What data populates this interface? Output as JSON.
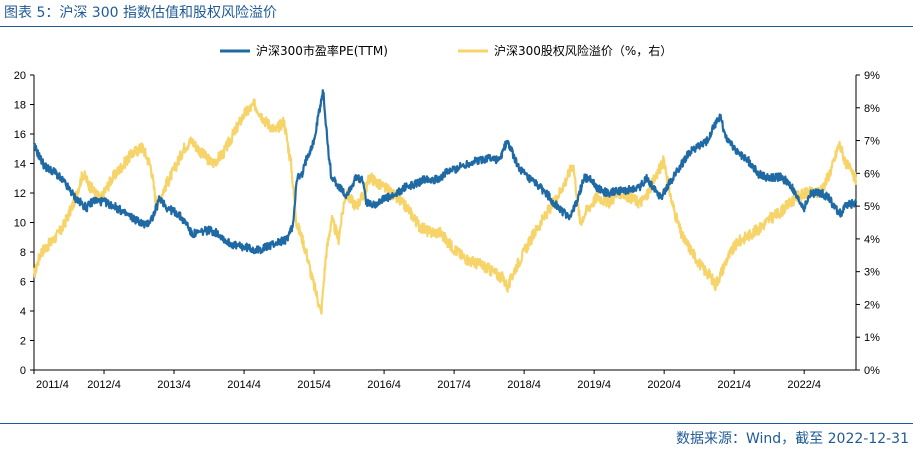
{
  "header": {
    "title": "图表 5：沪深 300 指数估值和股权风险溢价"
  },
  "footer": {
    "source": "数据来源：Wind，截至 2022-12-31"
  },
  "colors": {
    "accent": "#1f5a96",
    "pe_series": "#1f6aa5",
    "erp_series": "#f7d469"
  },
  "chart_data": {
    "type": "line",
    "legend_position": "top",
    "grid": false,
    "x_tick_labels": [
      "2011/4",
      "2012/4",
      "2013/4",
      "2014/4",
      "2015/4",
      "2016/4",
      "2017/4",
      "2018/4",
      "2019/4",
      "2020/4",
      "2021/4",
      "2022/4"
    ],
    "xlim": [
      2011.25,
      2022.99
    ],
    "y_left": {
      "label": "",
      "lim": [
        0,
        20
      ],
      "ticks": [
        "0",
        "2",
        "4",
        "6",
        "8",
        "10",
        "12",
        "14",
        "16",
        "18",
        "20"
      ]
    },
    "y_right": {
      "label": "",
      "lim": [
        0,
        9
      ],
      "ticks": [
        "0%",
        "1%",
        "2%",
        "3%",
        "4%",
        "5%",
        "6%",
        "7%",
        "8%",
        "9%"
      ]
    },
    "series": [
      {
        "name": "沪深300市盈率PE(TTM)",
        "axis": "left",
        "color": "#1f6aa5",
        "points": [
          [
            2011.25,
            15.2
          ],
          [
            2011.4,
            13.8
          ],
          [
            2011.55,
            13.4
          ],
          [
            2011.7,
            12.6
          ],
          [
            2011.85,
            11.6
          ],
          [
            2012.0,
            11.0
          ],
          [
            2012.1,
            11.5
          ],
          [
            2012.25,
            11.4
          ],
          [
            2012.4,
            11.1
          ],
          [
            2012.55,
            10.6
          ],
          [
            2012.7,
            10.2
          ],
          [
            2012.85,
            9.8
          ],
          [
            2012.95,
            10.4
          ],
          [
            2013.05,
            11.7
          ],
          [
            2013.15,
            11.0
          ],
          [
            2013.3,
            10.6
          ],
          [
            2013.45,
            9.8
          ],
          [
            2013.5,
            9.2
          ],
          [
            2013.6,
            9.3
          ],
          [
            2013.75,
            9.5
          ],
          [
            2013.9,
            9.2
          ],
          [
            2014.0,
            8.7
          ],
          [
            2014.15,
            8.4
          ],
          [
            2014.3,
            8.3
          ],
          [
            2014.45,
            8.1
          ],
          [
            2014.6,
            8.4
          ],
          [
            2014.75,
            8.7
          ],
          [
            2014.85,
            8.8
          ],
          [
            2014.95,
            9.8
          ],
          [
            2015.0,
            13.0
          ],
          [
            2015.08,
            13.2
          ],
          [
            2015.15,
            14.5
          ],
          [
            2015.25,
            15.5
          ],
          [
            2015.32,
            17.5
          ],
          [
            2015.38,
            18.9
          ],
          [
            2015.45,
            15.0
          ],
          [
            2015.5,
            13.0
          ],
          [
            2015.55,
            12.8
          ],
          [
            2015.7,
            11.8
          ],
          [
            2015.85,
            13.0
          ],
          [
            2015.95,
            12.8
          ],
          [
            2016.0,
            11.3
          ],
          [
            2016.1,
            11.2
          ],
          [
            2016.25,
            11.6
          ],
          [
            2016.4,
            11.8
          ],
          [
            2016.55,
            12.4
          ],
          [
            2016.7,
            12.6
          ],
          [
            2016.85,
            13.0
          ],
          [
            2017.0,
            12.9
          ],
          [
            2017.15,
            13.4
          ],
          [
            2017.3,
            13.7
          ],
          [
            2017.45,
            14.0
          ],
          [
            2017.6,
            14.2
          ],
          [
            2017.75,
            14.4
          ],
          [
            2017.9,
            14.2
          ],
          [
            2018.0,
            15.5
          ],
          [
            2018.08,
            14.8
          ],
          [
            2018.15,
            13.9
          ],
          [
            2018.3,
            13.0
          ],
          [
            2018.45,
            12.5
          ],
          [
            2018.6,
            11.8
          ],
          [
            2018.75,
            10.9
          ],
          [
            2018.9,
            10.4
          ],
          [
            2019.0,
            11.3
          ],
          [
            2019.1,
            13.0
          ],
          [
            2019.2,
            13.0
          ],
          [
            2019.3,
            12.3
          ],
          [
            2019.45,
            12.0
          ],
          [
            2019.6,
            12.1
          ],
          [
            2019.75,
            12.2
          ],
          [
            2019.9,
            12.4
          ],
          [
            2020.0,
            13.0
          ],
          [
            2020.1,
            12.4
          ],
          [
            2020.2,
            11.7
          ],
          [
            2020.3,
            12.5
          ],
          [
            2020.45,
            13.6
          ],
          [
            2020.6,
            14.7
          ],
          [
            2020.75,
            15.2
          ],
          [
            2020.85,
            15.4
          ],
          [
            2020.95,
            16.4
          ],
          [
            2021.05,
            17.2
          ],
          [
            2021.12,
            16.0
          ],
          [
            2021.2,
            15.3
          ],
          [
            2021.3,
            14.8
          ],
          [
            2021.45,
            14.2
          ],
          [
            2021.6,
            13.3
          ],
          [
            2021.75,
            13.0
          ],
          [
            2021.9,
            13.1
          ],
          [
            2022.0,
            12.8
          ],
          [
            2022.08,
            12.3
          ],
          [
            2022.15,
            11.6
          ],
          [
            2022.25,
            11.0
          ],
          [
            2022.35,
            12.0
          ],
          [
            2022.5,
            12.0
          ],
          [
            2022.6,
            11.7
          ],
          [
            2022.7,
            10.9
          ],
          [
            2022.78,
            10.6
          ],
          [
            2022.85,
            11.2
          ],
          [
            2022.99,
            11.3
          ]
        ]
      },
      {
        "name": "沪深300股权风险溢价（%，右）",
        "axis": "right",
        "color": "#f7d469",
        "points": [
          [
            2011.25,
            2.9
          ],
          [
            2011.35,
            3.6
          ],
          [
            2011.5,
            3.9
          ],
          [
            2011.65,
            4.3
          ],
          [
            2011.8,
            5.0
          ],
          [
            2011.95,
            6.0
          ],
          [
            2012.05,
            5.6
          ],
          [
            2012.2,
            5.2
          ],
          [
            2012.35,
            5.8
          ],
          [
            2012.5,
            6.2
          ],
          [
            2012.65,
            6.6
          ],
          [
            2012.8,
            6.8
          ],
          [
            2012.92,
            6.2
          ],
          [
            2013.0,
            5.0
          ],
          [
            2013.1,
            5.5
          ],
          [
            2013.25,
            6.1
          ],
          [
            2013.4,
            6.8
          ],
          [
            2013.5,
            7.0
          ],
          [
            2013.65,
            6.6
          ],
          [
            2013.8,
            6.3
          ],
          [
            2013.95,
            6.6
          ],
          [
            2014.1,
            7.2
          ],
          [
            2014.25,
            7.8
          ],
          [
            2014.4,
            8.1
          ],
          [
            2014.55,
            7.6
          ],
          [
            2014.7,
            7.3
          ],
          [
            2014.82,
            7.6
          ],
          [
            2014.92,
            6.3
          ],
          [
            2015.0,
            4.5
          ],
          [
            2015.08,
            4.0
          ],
          [
            2015.15,
            3.5
          ],
          [
            2015.22,
            2.8
          ],
          [
            2015.3,
            2.2
          ],
          [
            2015.35,
            1.7
          ],
          [
            2015.42,
            3.5
          ],
          [
            2015.5,
            4.6
          ],
          [
            2015.6,
            4.0
          ],
          [
            2015.7,
            5.4
          ],
          [
            2015.85,
            5.0
          ],
          [
            2015.95,
            5.3
          ],
          [
            2016.05,
            5.9
          ],
          [
            2016.15,
            5.7
          ],
          [
            2016.3,
            5.5
          ],
          [
            2016.45,
            5.2
          ],
          [
            2016.6,
            4.9
          ],
          [
            2016.75,
            4.4
          ],
          [
            2016.9,
            4.2
          ],
          [
            2017.05,
            4.2
          ],
          [
            2017.2,
            3.8
          ],
          [
            2017.35,
            3.5
          ],
          [
            2017.5,
            3.3
          ],
          [
            2017.65,
            3.2
          ],
          [
            2017.8,
            3.0
          ],
          [
            2017.95,
            2.8
          ],
          [
            2018.02,
            2.5
          ],
          [
            2018.1,
            3.0
          ],
          [
            2018.25,
            3.6
          ],
          [
            2018.4,
            4.2
          ],
          [
            2018.55,
            4.7
          ],
          [
            2018.7,
            5.2
          ],
          [
            2018.85,
            5.8
          ],
          [
            2018.95,
            6.3
          ],
          [
            2019.05,
            4.5
          ],
          [
            2019.15,
            4.9
          ],
          [
            2019.3,
            5.3
          ],
          [
            2019.45,
            5.1
          ],
          [
            2019.6,
            5.4
          ],
          [
            2019.75,
            5.3
          ],
          [
            2019.9,
            5.1
          ],
          [
            2020.0,
            5.3
          ],
          [
            2020.15,
            6.0
          ],
          [
            2020.25,
            6.4
          ],
          [
            2020.35,
            5.2
          ],
          [
            2020.5,
            4.1
          ],
          [
            2020.65,
            3.6
          ],
          [
            2020.8,
            3.1
          ],
          [
            2020.9,
            2.9
          ],
          [
            2020.98,
            2.6
          ],
          [
            2021.05,
            2.9
          ],
          [
            2021.15,
            3.4
          ],
          [
            2021.3,
            3.9
          ],
          [
            2021.45,
            4.1
          ],
          [
            2021.6,
            4.3
          ],
          [
            2021.75,
            4.6
          ],
          [
            2021.9,
            4.8
          ],
          [
            2022.05,
            5.1
          ],
          [
            2022.15,
            5.3
          ],
          [
            2022.3,
            5.4
          ],
          [
            2022.45,
            5.4
          ],
          [
            2022.55,
            5.7
          ],
          [
            2022.65,
            6.2
          ],
          [
            2022.75,
            6.9
          ],
          [
            2022.85,
            6.3
          ],
          [
            2022.99,
            5.8
          ]
        ]
      }
    ]
  }
}
